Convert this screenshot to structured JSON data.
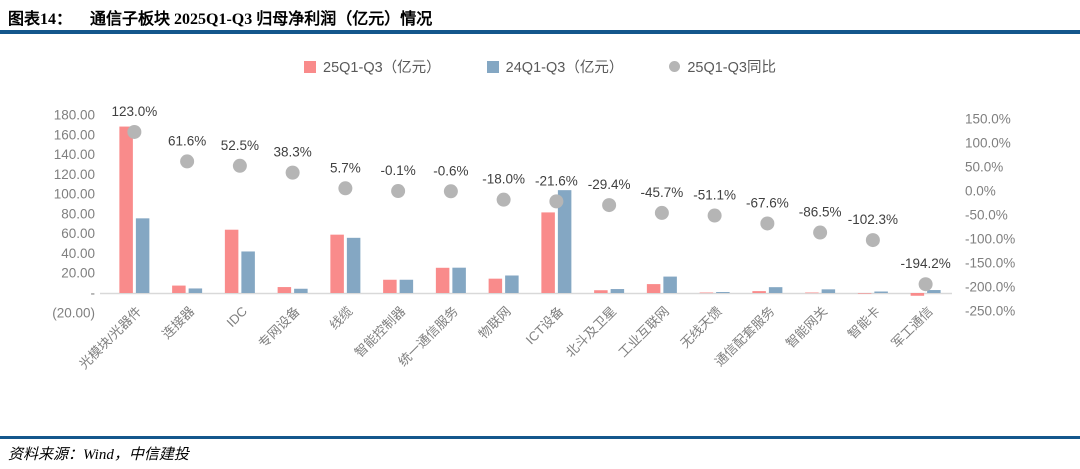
{
  "header": {
    "title_prefix": "图表14：",
    "title": "通信子板块 2025Q1-Q3 归母净利润（亿元）情况"
  },
  "footer": {
    "source": "资料来源：Wind，中信建投"
  },
  "colors": {
    "bar_25q1q3": "#f98b8b",
    "bar_24q1q3": "#84a7c3",
    "dot_yoy": "#b5b5b5",
    "divider_blue": "#14578c",
    "axis_text": "#7f7f7f",
    "data_label_text": "#404040",
    "axis_line": "#d9d9d9"
  },
  "chart_data": {
    "type": "bar",
    "subtype": "dual-axis grouped bars with scatter (YoY) on secondary axis",
    "grid": "off",
    "legend_position": "top-center",
    "legend": [
      "25Q1-Q3（亿元）",
      "24Q1-Q3（亿元）",
      "25Q1-Q3同比"
    ],
    "categories": [
      "光模块/光器件",
      "连接器",
      "IDC",
      "专网设备",
      "线缆",
      "智能控制器",
      "统一通信服务",
      "物联网",
      "ICT设备",
      "北斗及卫星",
      "工业互联网",
      "无线天馈",
      "通信配套服务",
      "智能网关",
      "智能卡",
      "军工通信"
    ],
    "series": [
      {
        "name": "25Q1-Q3（亿元）",
        "type": "bar",
        "axis": "left",
        "values": [
          168.3,
          7.5,
          64.0,
          6.0,
          59.0,
          13.4,
          25.5,
          14.5,
          81.5,
          2.8,
          9.0,
          0.5,
          1.9,
          0.5,
          -0.03,
          -2.8
        ]
      },
      {
        "name": "24Q1-Q3（亿元）",
        "type": "bar",
        "axis": "left",
        "values": [
          75.5,
          4.6,
          42.0,
          4.3,
          55.8,
          13.4,
          25.6,
          17.7,
          104.0,
          4.0,
          16.6,
          1.0,
          5.9,
          3.7,
          1.5,
          3.0
        ]
      },
      {
        "name": "25Q1-Q3同比",
        "type": "scatter",
        "axis": "right",
        "values": [
          123.0,
          61.6,
          52.5,
          38.3,
          5.7,
          -0.1,
          -0.6,
          -18.0,
          -21.6,
          -29.4,
          -45.7,
          -51.1,
          -67.6,
          -86.5,
          -102.3,
          -194.2
        ],
        "labels": [
          "123.0%",
          "61.6%",
          "52.5%",
          "38.3%",
          "5.7%",
          "-0.1%",
          "-0.6%",
          "-18.0%",
          "-21.6%",
          "-29.4%",
          "-45.7%",
          "-51.1%",
          "-67.6%",
          "-86.5%",
          "-102.3%",
          "-194.2%"
        ]
      }
    ],
    "left_axis": {
      "min": -20,
      "max": 180,
      "ticks": [
        {
          "label": "180.00",
          "value": 180
        },
        {
          "label": "160.00",
          "value": 160
        },
        {
          "label": "140.00",
          "value": 140
        },
        {
          "label": "120.00",
          "value": 120
        },
        {
          "label": "100.00",
          "value": 100
        },
        {
          "label": "80.00",
          "value": 80
        },
        {
          "label": "60.00",
          "value": 60
        },
        {
          "label": "40.00",
          "value": 40
        },
        {
          "label": "20.00",
          "value": 20
        },
        {
          "label": "-",
          "value": 0
        },
        {
          "label": "(20.00)",
          "value": -20
        }
      ]
    },
    "right_axis": {
      "min": -250,
      "max": 150,
      "ticks": [
        {
          "label": "150.0%",
          "value": 150
        },
        {
          "label": "100.0%",
          "value": 100
        },
        {
          "label": "50.0%",
          "value": 50
        },
        {
          "label": "0.0%",
          "value": 0
        },
        {
          "label": "-50.0%",
          "value": -50
        },
        {
          "label": "-100.0%",
          "value": -100
        },
        {
          "label": "-150.0%",
          "value": -150
        },
        {
          "label": "-200.0%",
          "value": -200
        },
        {
          "label": "-250.0%",
          "value": -250
        }
      ]
    }
  }
}
